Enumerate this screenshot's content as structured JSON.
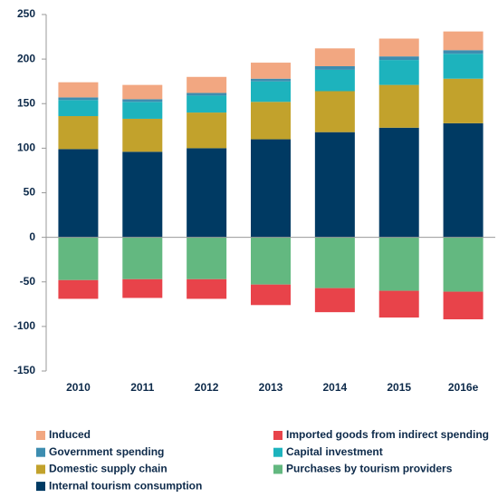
{
  "chart_data": {
    "type": "stacked_bar",
    "categories": [
      "2010",
      "2011",
      "2012",
      "2013",
      "2014",
      "2015",
      "2016e"
    ],
    "series": [
      {
        "name": "Induced",
        "color": "#f2a781",
        "values": [
          17,
          16,
          18,
          18,
          20,
          20,
          21
        ]
      },
      {
        "name": "Imported goods from indirect spending",
        "color": "#e8434a",
        "values": [
          -21,
          -21,
          -22,
          -23,
          -27,
          -30,
          -31
        ]
      },
      {
        "name": "Government spending",
        "color": "#3d8db0",
        "values": [
          3,
          3,
          3,
          3,
          4,
          4,
          4
        ]
      },
      {
        "name": "Capital investment",
        "color": "#1db3bd",
        "values": [
          18,
          19,
          19,
          23,
          24,
          28,
          28
        ]
      },
      {
        "name": "Domestic supply chain",
        "color": "#c2a22c",
        "values": [
          37,
          37,
          40,
          42,
          46,
          48,
          50
        ]
      },
      {
        "name": "Purchases by tourism providers",
        "color": "#63b880",
        "values": [
          -48,
          -47,
          -47,
          -53,
          -57,
          -60,
          -61
        ]
      },
      {
        "name": "Internal tourism consumption",
        "color": "#003a63",
        "values": [
          99,
          96,
          100,
          110,
          118,
          123,
          128
        ]
      }
    ],
    "ylim": [
      -150,
      250
    ],
    "yticks": [
      -150,
      -100,
      -50,
      0,
      50,
      100,
      150,
      200,
      250
    ],
    "grid": false
  }
}
